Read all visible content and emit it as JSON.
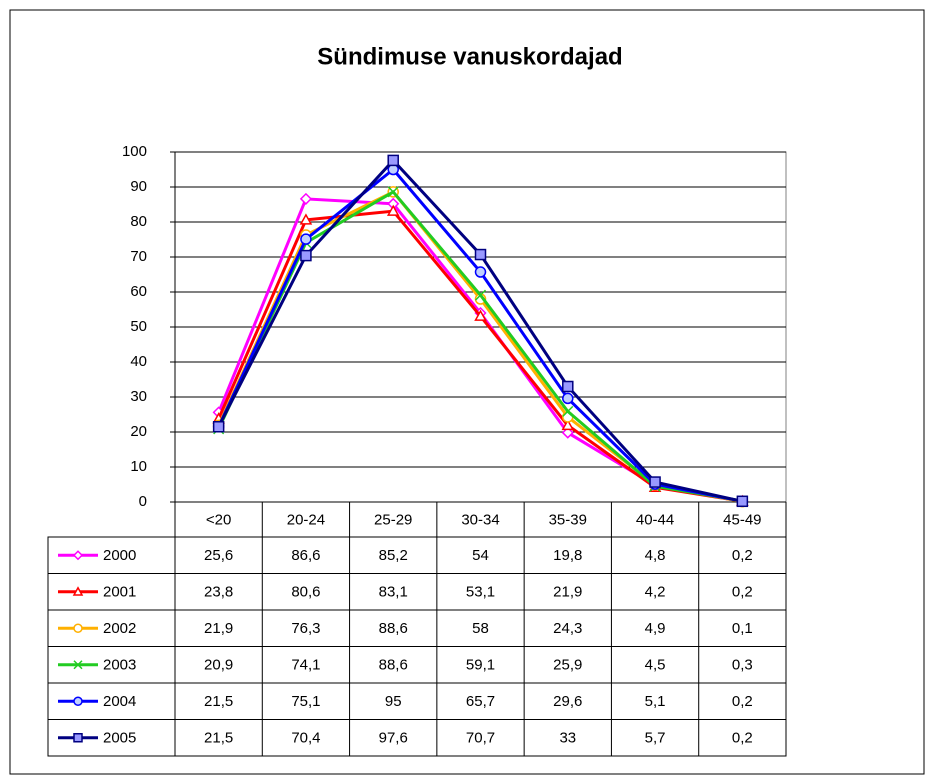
{
  "chart_data": {
    "type": "line",
    "title": "Sündimuse vanuskordajad",
    "categories": [
      "<20",
      "20-24",
      "25-29",
      "30-34",
      "35-39",
      "40-44",
      "45-49"
    ],
    "ylim": [
      0,
      100
    ],
    "yticks": [
      0,
      10,
      20,
      30,
      40,
      50,
      60,
      70,
      80,
      90,
      100
    ],
    "grid": true,
    "series": [
      {
        "name": "2000",
        "color": "#ff00ff",
        "marker": "diamond",
        "values": [
          25.6,
          86.6,
          85.2,
          54,
          19.8,
          4.8,
          0.2
        ],
        "value_labels": [
          "25,6",
          "86,6",
          "85,2",
          "54",
          "19,8",
          "4,8",
          "0,2"
        ]
      },
      {
        "name": "2001",
        "color": "#ff0000",
        "marker": "triangle",
        "values": [
          23.8,
          80.6,
          83.1,
          53.1,
          21.9,
          4.2,
          0.2
        ],
        "value_labels": [
          "23,8",
          "80,6",
          "83,1",
          "53,1",
          "21,9",
          "4,2",
          "0,2"
        ]
      },
      {
        "name": "2002",
        "color": "#ffb000",
        "marker": "circle",
        "values": [
          21.9,
          76.3,
          88.6,
          58,
          24.3,
          4.9,
          0.1
        ],
        "value_labels": [
          "21,9",
          "76,3",
          "88,6",
          "58",
          "24,3",
          "4,9",
          "0,1"
        ]
      },
      {
        "name": "2003",
        "color": "#22cc22",
        "marker": "x",
        "values": [
          20.9,
          74.1,
          88.6,
          59.1,
          25.9,
          4.5,
          0.3
        ],
        "value_labels": [
          "20,9",
          "74,1",
          "88,6",
          "59,1",
          "25,9",
          "4,5",
          "0,3"
        ]
      },
      {
        "name": "2004",
        "color": "#0000ff",
        "marker": "circle",
        "values": [
          21.5,
          75.1,
          95,
          65.7,
          29.6,
          5.1,
          0.2
        ],
        "value_labels": [
          "21,5",
          "75,1",
          "95",
          "65,7",
          "29,6",
          "5,1",
          "0,2"
        ]
      },
      {
        "name": "2005",
        "color": "#000080",
        "marker": "square",
        "values": [
          21.5,
          70.4,
          97.6,
          70.7,
          33,
          5.7,
          0.2
        ],
        "value_labels": [
          "21,5",
          "70,4",
          "97,6",
          "70,7",
          "33",
          "5,7",
          "0,2"
        ]
      }
    ]
  }
}
